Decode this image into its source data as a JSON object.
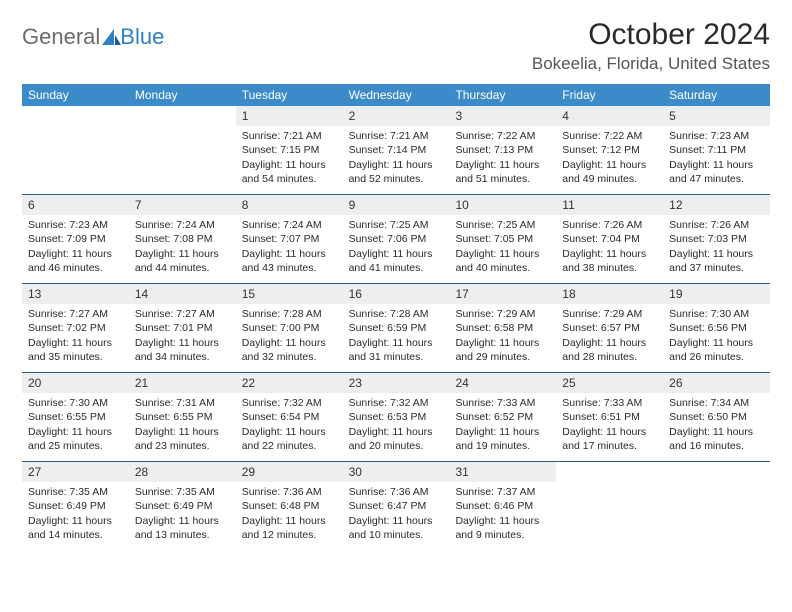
{
  "logo": {
    "general": "General",
    "blue": "Blue"
  },
  "title": "October 2024",
  "location": "Bokeelia, Florida, United States",
  "colors": {
    "header_bg": "#3b8bc9",
    "header_text": "#ffffff",
    "daynum_bg": "#eceef0",
    "week_border": "#2b5e8a",
    "body_text": "#2a2a2a",
    "logo_gray": "#6c6c6c",
    "logo_blue": "#2f7fc3"
  },
  "dayNames": [
    "Sunday",
    "Monday",
    "Tuesday",
    "Wednesday",
    "Thursday",
    "Friday",
    "Saturday"
  ],
  "weeks": [
    [
      null,
      null,
      {
        "n": "1",
        "sr": "7:21 AM",
        "ss": "7:15 PM",
        "dl": "11 hours and 54 minutes."
      },
      {
        "n": "2",
        "sr": "7:21 AM",
        "ss": "7:14 PM",
        "dl": "11 hours and 52 minutes."
      },
      {
        "n": "3",
        "sr": "7:22 AM",
        "ss": "7:13 PM",
        "dl": "11 hours and 51 minutes."
      },
      {
        "n": "4",
        "sr": "7:22 AM",
        "ss": "7:12 PM",
        "dl": "11 hours and 49 minutes."
      },
      {
        "n": "5",
        "sr": "7:23 AM",
        "ss": "7:11 PM",
        "dl": "11 hours and 47 minutes."
      }
    ],
    [
      {
        "n": "6",
        "sr": "7:23 AM",
        "ss": "7:09 PM",
        "dl": "11 hours and 46 minutes."
      },
      {
        "n": "7",
        "sr": "7:24 AM",
        "ss": "7:08 PM",
        "dl": "11 hours and 44 minutes."
      },
      {
        "n": "8",
        "sr": "7:24 AM",
        "ss": "7:07 PM",
        "dl": "11 hours and 43 minutes."
      },
      {
        "n": "9",
        "sr": "7:25 AM",
        "ss": "7:06 PM",
        "dl": "11 hours and 41 minutes."
      },
      {
        "n": "10",
        "sr": "7:25 AM",
        "ss": "7:05 PM",
        "dl": "11 hours and 40 minutes."
      },
      {
        "n": "11",
        "sr": "7:26 AM",
        "ss": "7:04 PM",
        "dl": "11 hours and 38 minutes."
      },
      {
        "n": "12",
        "sr": "7:26 AM",
        "ss": "7:03 PM",
        "dl": "11 hours and 37 minutes."
      }
    ],
    [
      {
        "n": "13",
        "sr": "7:27 AM",
        "ss": "7:02 PM",
        "dl": "11 hours and 35 minutes."
      },
      {
        "n": "14",
        "sr": "7:27 AM",
        "ss": "7:01 PM",
        "dl": "11 hours and 34 minutes."
      },
      {
        "n": "15",
        "sr": "7:28 AM",
        "ss": "7:00 PM",
        "dl": "11 hours and 32 minutes."
      },
      {
        "n": "16",
        "sr": "7:28 AM",
        "ss": "6:59 PM",
        "dl": "11 hours and 31 minutes."
      },
      {
        "n": "17",
        "sr": "7:29 AM",
        "ss": "6:58 PM",
        "dl": "11 hours and 29 minutes."
      },
      {
        "n": "18",
        "sr": "7:29 AM",
        "ss": "6:57 PM",
        "dl": "11 hours and 28 minutes."
      },
      {
        "n": "19",
        "sr": "7:30 AM",
        "ss": "6:56 PM",
        "dl": "11 hours and 26 minutes."
      }
    ],
    [
      {
        "n": "20",
        "sr": "7:30 AM",
        "ss": "6:55 PM",
        "dl": "11 hours and 25 minutes."
      },
      {
        "n": "21",
        "sr": "7:31 AM",
        "ss": "6:55 PM",
        "dl": "11 hours and 23 minutes."
      },
      {
        "n": "22",
        "sr": "7:32 AM",
        "ss": "6:54 PM",
        "dl": "11 hours and 22 minutes."
      },
      {
        "n": "23",
        "sr": "7:32 AM",
        "ss": "6:53 PM",
        "dl": "11 hours and 20 minutes."
      },
      {
        "n": "24",
        "sr": "7:33 AM",
        "ss": "6:52 PM",
        "dl": "11 hours and 19 minutes."
      },
      {
        "n": "25",
        "sr": "7:33 AM",
        "ss": "6:51 PM",
        "dl": "11 hours and 17 minutes."
      },
      {
        "n": "26",
        "sr": "7:34 AM",
        "ss": "6:50 PM",
        "dl": "11 hours and 16 minutes."
      }
    ],
    [
      {
        "n": "27",
        "sr": "7:35 AM",
        "ss": "6:49 PM",
        "dl": "11 hours and 14 minutes."
      },
      {
        "n": "28",
        "sr": "7:35 AM",
        "ss": "6:49 PM",
        "dl": "11 hours and 13 minutes."
      },
      {
        "n": "29",
        "sr": "7:36 AM",
        "ss": "6:48 PM",
        "dl": "11 hours and 12 minutes."
      },
      {
        "n": "30",
        "sr": "7:36 AM",
        "ss": "6:47 PM",
        "dl": "11 hours and 10 minutes."
      },
      {
        "n": "31",
        "sr": "7:37 AM",
        "ss": "6:46 PM",
        "dl": "11 hours and 9 minutes."
      },
      null,
      null
    ]
  ]
}
